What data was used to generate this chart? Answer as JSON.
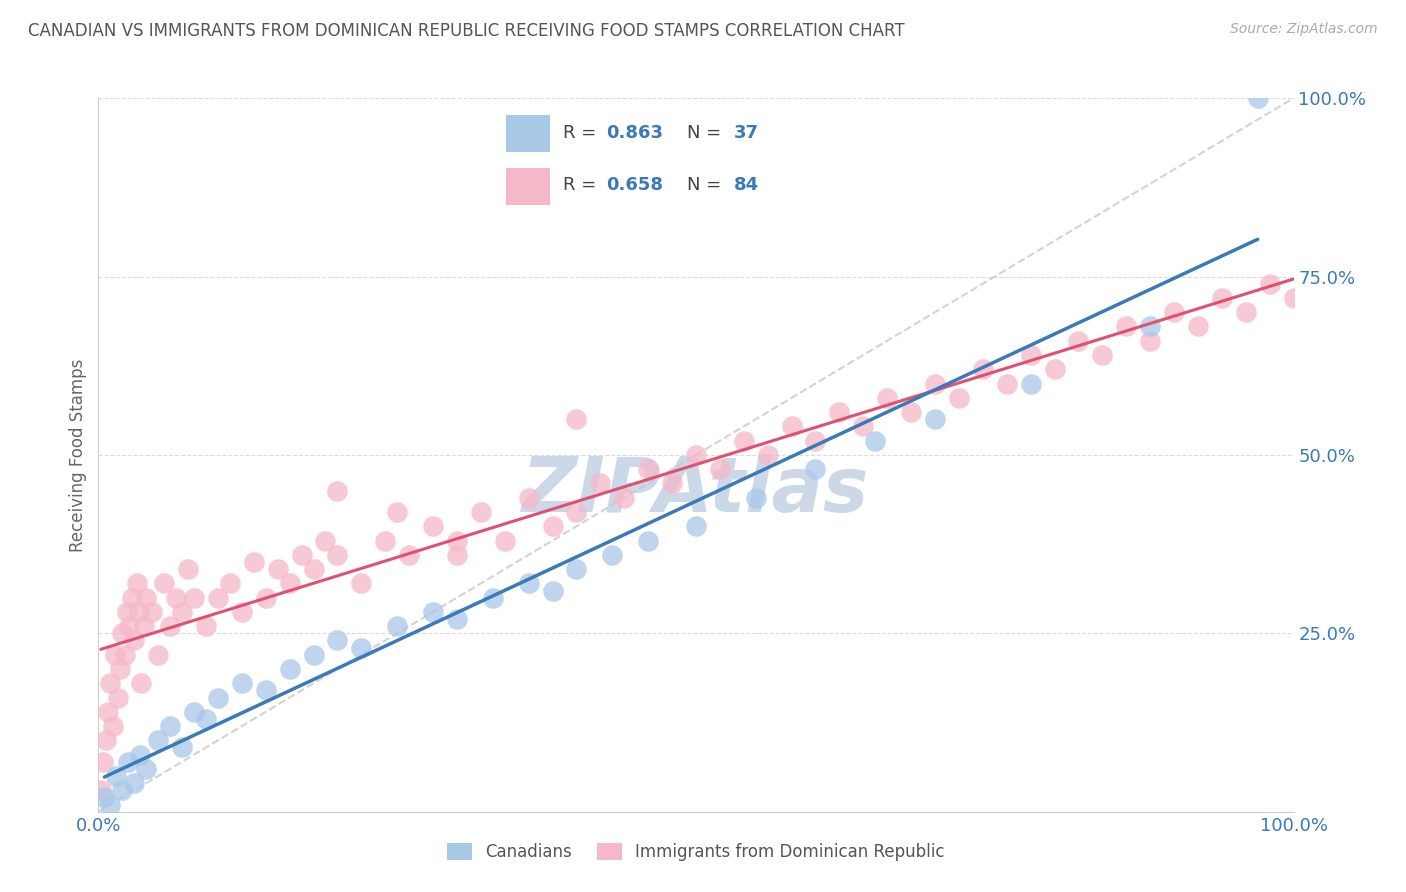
{
  "title": "CANADIAN VS IMMIGRANTS FROM DOMINICAN REPUBLIC RECEIVING FOOD STAMPS CORRELATION CHART",
  "source": "Source: ZipAtlas.com",
  "ylabel": "Receiving Food Stamps",
  "R_blue": 0.863,
  "N_blue": 37,
  "R_pink": 0.658,
  "N_pink": 84,
  "blue_color": "#a8c8e8",
  "pink_color": "#f5b8c8",
  "blue_line_color": "#3a7ab8",
  "pink_line_color": "#e05070",
  "dashed_line_color": "#c8c8c8",
  "background_color": "#ffffff",
  "grid_color": "#cccccc",
  "title_color": "#555555",
  "source_color": "#aaaaaa",
  "watermark_color": "#ccd8e8",
  "legend_label_blue": "Canadians",
  "legend_label_pink": "Immigrants from Dominican Republic",
  "blue_scatter_x": [
    0.5,
    1.0,
    1.5,
    2.0,
    2.5,
    3.0,
    3.5,
    4.0,
    5.0,
    6.0,
    7.0,
    8.0,
    9.0,
    10.0,
    12.0,
    14.0,
    16.0,
    18.0,
    20.0,
    22.0,
    25.0,
    28.0,
    30.0,
    33.0,
    36.0,
    38.0,
    40.0,
    43.0,
    46.0,
    50.0,
    55.0,
    60.0,
    65.0,
    70.0,
    78.0,
    88.0,
    97.0
  ],
  "blue_scatter_y": [
    2.0,
    1.0,
    5.0,
    3.0,
    7.0,
    4.0,
    8.0,
    6.0,
    10.0,
    12.0,
    9.0,
    14.0,
    13.0,
    16.0,
    18.0,
    17.0,
    20.0,
    22.0,
    24.0,
    23.0,
    26.0,
    28.0,
    27.0,
    30.0,
    32.0,
    31.0,
    34.0,
    36.0,
    38.0,
    40.0,
    44.0,
    48.0,
    52.0,
    55.0,
    60.0,
    68.0,
    100.0
  ],
  "pink_scatter_x": [
    0.2,
    0.4,
    0.6,
    0.8,
    1.0,
    1.2,
    1.4,
    1.6,
    1.8,
    2.0,
    2.2,
    2.4,
    2.6,
    2.8,
    3.0,
    3.2,
    3.4,
    3.6,
    3.8,
    4.0,
    4.5,
    5.0,
    5.5,
    6.0,
    6.5,
    7.0,
    7.5,
    8.0,
    9.0,
    10.0,
    11.0,
    12.0,
    13.0,
    14.0,
    15.0,
    16.0,
    17.0,
    18.0,
    19.0,
    20.0,
    22.0,
    24.0,
    26.0,
    28.0,
    30.0,
    32.0,
    34.0,
    36.0,
    38.0,
    40.0,
    42.0,
    44.0,
    46.0,
    48.0,
    50.0,
    52.0,
    54.0,
    56.0,
    58.0,
    60.0,
    62.0,
    64.0,
    66.0,
    68.0,
    70.0,
    72.0,
    74.0,
    76.0,
    78.0,
    80.0,
    82.0,
    84.0,
    86.0,
    88.0,
    90.0,
    92.0,
    94.0,
    96.0,
    98.0,
    100.0,
    40.0,
    20.0,
    25.0,
    30.0
  ],
  "pink_scatter_y": [
    3.0,
    7.0,
    10.0,
    14.0,
    18.0,
    12.0,
    22.0,
    16.0,
    20.0,
    25.0,
    22.0,
    28.0,
    26.0,
    30.0,
    24.0,
    32.0,
    28.0,
    18.0,
    26.0,
    30.0,
    28.0,
    22.0,
    32.0,
    26.0,
    30.0,
    28.0,
    34.0,
    30.0,
    26.0,
    30.0,
    32.0,
    28.0,
    35.0,
    30.0,
    34.0,
    32.0,
    36.0,
    34.0,
    38.0,
    36.0,
    32.0,
    38.0,
    36.0,
    40.0,
    36.0,
    42.0,
    38.0,
    44.0,
    40.0,
    42.0,
    46.0,
    44.0,
    48.0,
    46.0,
    50.0,
    48.0,
    52.0,
    50.0,
    54.0,
    52.0,
    56.0,
    54.0,
    58.0,
    56.0,
    60.0,
    58.0,
    62.0,
    60.0,
    64.0,
    62.0,
    66.0,
    64.0,
    68.0,
    66.0,
    70.0,
    68.0,
    72.0,
    70.0,
    74.0,
    72.0,
    55.0,
    45.0,
    42.0,
    38.0
  ]
}
